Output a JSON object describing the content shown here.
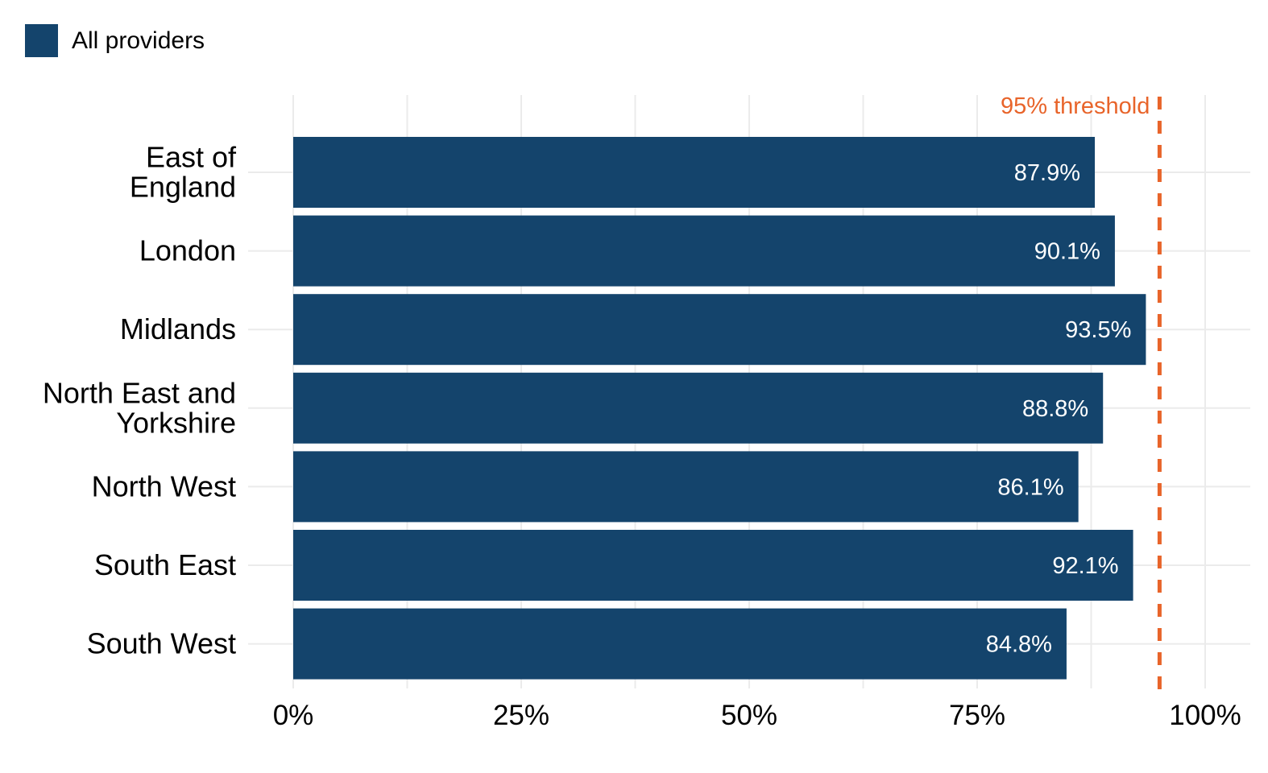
{
  "legend": {
    "label": "All providers",
    "color": "#14446c"
  },
  "chart_data": {
    "type": "bar",
    "orientation": "horizontal",
    "title": "",
    "xlabel": "",
    "ylabel": "",
    "categories": [
      "East of England",
      "London",
      "Midlands",
      "North East and Yorkshire",
      "North West",
      "South East",
      "South West"
    ],
    "category_lines": [
      [
        "East of",
        "England"
      ],
      [
        "London"
      ],
      [
        "Midlands"
      ],
      [
        "North East and",
        "Yorkshire"
      ],
      [
        "North West"
      ],
      [
        "South East"
      ],
      [
        "South West"
      ]
    ],
    "series": [
      {
        "name": "All providers",
        "color": "#14446c",
        "values": [
          87.9,
          90.1,
          93.5,
          88.8,
          86.1,
          92.1,
          84.8
        ],
        "data_labels": [
          "87.9%",
          "90.1%",
          "93.5%",
          "88.8%",
          "86.1%",
          "92.1%",
          "84.8%"
        ]
      }
    ],
    "xlim": [
      0,
      100
    ],
    "x_ticks": [
      0,
      25,
      50,
      75,
      100
    ],
    "x_tick_labels": [
      "0%",
      "25%",
      "50%",
      "75%",
      "100%"
    ],
    "grid": true,
    "legend_position": "top-left",
    "reference_line": {
      "value": 95,
      "label": "95% threshold",
      "color": "#e8642a",
      "style": "dashed"
    }
  }
}
